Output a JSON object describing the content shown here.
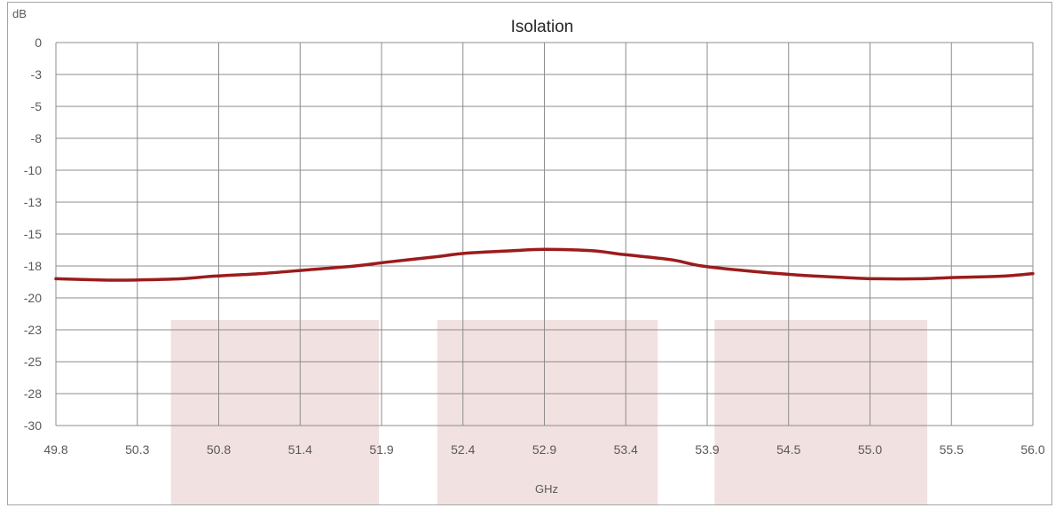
{
  "chart_data": {
    "type": "line",
    "title": "Isolation",
    "ylabel": "dB",
    "xlabel": "GHz",
    "xlim": [
      49.8,
      56.0
    ],
    "ylim": [
      -30,
      0
    ],
    "grid": true,
    "x_ticks": [
      "49.8",
      "50.3",
      "50.8",
      "51.4",
      "51.9",
      "52.4",
      "52.9",
      "53.4",
      "53.9",
      "54.5",
      "55.0",
      "55.5",
      "56.0"
    ],
    "y_ticks": [
      "0",
      "-3",
      "-5",
      "-8",
      "-10",
      "-13",
      "-15",
      "-18",
      "-20",
      "-23",
      "-25",
      "-28",
      "-30"
    ],
    "bands": [
      {
        "x_start": 50.53,
        "x_end": 51.85
      },
      {
        "x_start": 52.22,
        "x_end": 53.62
      },
      {
        "x_start": 53.98,
        "x_end": 55.33
      }
    ],
    "band_color": "#f2e1e1",
    "series": [
      {
        "color": "#9b1c1c",
        "x": [
          49.8,
          50.1,
          50.3,
          50.6,
          50.8,
          51.1,
          51.4,
          51.7,
          51.9,
          52.2,
          52.4,
          52.7,
          52.9,
          53.2,
          53.4,
          53.7,
          53.9,
          54.2,
          54.5,
          54.8,
          55.0,
          55.3,
          55.5,
          55.8,
          56.0
        ],
        "y": [
          -18.5,
          -18.6,
          -18.6,
          -18.5,
          -18.3,
          -18.1,
          -17.8,
          -17.5,
          -17.2,
          -16.8,
          -16.5,
          -16.3,
          -16.2,
          -16.3,
          -16.6,
          -17.0,
          -17.5,
          -17.9,
          -18.2,
          -18.4,
          -18.5,
          -18.5,
          -18.4,
          -18.3,
          -18.1
        ]
      }
    ]
  }
}
